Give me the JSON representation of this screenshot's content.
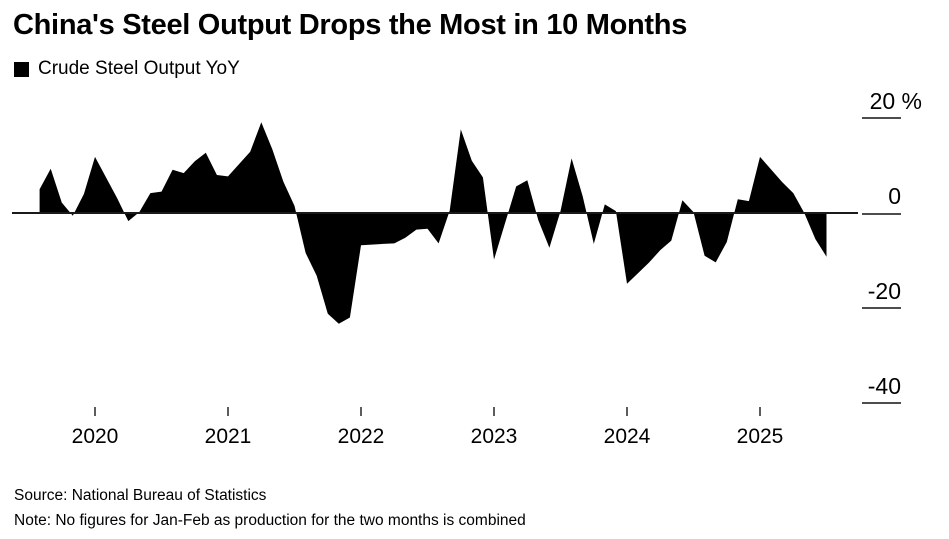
{
  "page": {
    "title": "China's Steel Output Drops the Most in 10 Months",
    "legend_label": "Crude Steel Output YoY",
    "source_line": "Source: National Bureau of Statistics",
    "note_line": "Note: No figures for Jan-Feb as production for the two months is combined"
  },
  "colors": {
    "series_fill": "#000000",
    "zero_line": "#1a1a1a",
    "y_tick_dash": "#4d4d4d",
    "x_tick_mark": "#333333",
    "text": "#000000",
    "background": "#ffffff"
  },
  "chart_data": {
    "type": "area",
    "title": "China's Steel Output Drops the Most in 10 Months",
    "series_name": "Crude Steel Output YoY",
    "unit": "%",
    "baseline": 0,
    "grid": "off",
    "legend_position": "top-left",
    "y_axis": {
      "side": "right",
      "range": [
        -45,
        25
      ],
      "ticks": [
        {
          "label": "20 %",
          "value": 20
        },
        {
          "label": "0",
          "value": 0
        },
        {
          "label": "-20",
          "value": -20
        },
        {
          "label": "-40",
          "value": -40
        }
      ]
    },
    "x_axis": {
      "range": [
        "Jul 2019",
        "Jun 2025"
      ],
      "tick_years": [
        2020,
        2021,
        2022,
        2023,
        2024,
        2025
      ],
      "note": "monthly points, no Jan-Feb figures (combined)"
    },
    "months": [
      "Jul 2019",
      "Aug 2019",
      "Sep 2019",
      "Oct 2019",
      "Nov 2019",
      "Dec 2019",
      "Feb 2020",
      "Mar 2020",
      "Apr 2020",
      "May 2020",
      "Jun 2020",
      "Jul 2020",
      "Aug 2020",
      "Sep 2020",
      "Oct 2020",
      "Nov 2020",
      "Dec 2020",
      "Feb 2021",
      "Mar 2021",
      "Apr 2021",
      "May 2021",
      "Jun 2021",
      "Jul 2021",
      "Aug 2021",
      "Sep 2021",
      "Oct 2021",
      "Nov 2021",
      "Dec 2021",
      "Feb 2022",
      "Mar 2022",
      "Apr 2022",
      "May 2022",
      "Jun 2022",
      "Jul 2022",
      "Aug 2022",
      "Sep 2022",
      "Oct 2022",
      "Nov 2022",
      "Dec 2022",
      "Feb 2023",
      "Mar 2023",
      "Apr 2023",
      "May 2023",
      "Jun 2023",
      "Jul 2023",
      "Aug 2023",
      "Sep 2023",
      "Oct 2023",
      "Nov 2023",
      "Dec 2023",
      "Feb 2024",
      "Mar 2024",
      "Apr 2024",
      "May 2024",
      "Jun 2024",
      "Jul 2024",
      "Aug 2024",
      "Sep 2024",
      "Oct 2024",
      "Nov 2024",
      "Dec 2024",
      "Feb 2025",
      "Mar 2025",
      "Apr 2025",
      "May 2025",
      "Jun 2025"
    ],
    "values": [
      5.0,
      9.3,
      2.2,
      -0.6,
      4.0,
      11.8,
      3.1,
      -1.7,
      0.2,
      4.2,
      4.5,
      9.1,
      8.4,
      10.9,
      12.7,
      8.0,
      7.7,
      12.9,
      19.1,
      13.4,
      6.6,
      1.5,
      -8.4,
      -13.2,
      -21.2,
      -23.3,
      -22.0,
      -6.8,
      -6.5,
      -6.4,
      -5.2,
      -3.5,
      -3.3,
      -6.4,
      0.5,
      17.6,
      11.0,
      7.5,
      -9.8,
      5.6,
      6.9,
      -1.5,
      -7.3,
      0.4,
      11.5,
      3.5,
      -6.5,
      1.8,
      0.4,
      -14.9,
      -10.4,
      -7.8,
      -5.8,
      2.7,
      0.2,
      -9.0,
      -10.4,
      -6.1,
      2.9,
      2.5,
      11.8,
      6.5,
      4.2,
      0.0,
      -5.5,
      -9.2
    ]
  }
}
